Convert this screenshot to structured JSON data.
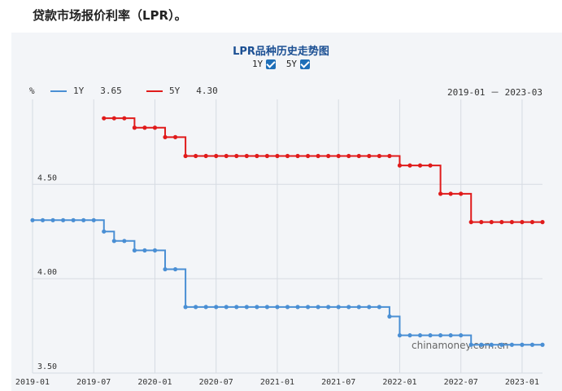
{
  "headline": "贷款市场报价利率（LPR）。",
  "chart_data": {
    "type": "line",
    "title": "LPR品种历史走势图",
    "toggles": [
      {
        "label": "1Y",
        "checked": true
      },
      {
        "label": "5Y",
        "checked": true
      }
    ],
    "unit": "%",
    "range_text": "2019-01 － 2023-03",
    "watermark": "chinamoney.com.cn",
    "x": [
      "2019-01",
      "2019-02",
      "2019-03",
      "2019-04",
      "2019-05",
      "2019-06",
      "2019-07",
      "2019-08",
      "2019-09",
      "2019-10",
      "2019-11",
      "2019-12",
      "2020-01",
      "2020-02",
      "2020-03",
      "2020-04",
      "2020-05",
      "2020-06",
      "2020-07",
      "2020-08",
      "2020-09",
      "2020-10",
      "2020-11",
      "2020-12",
      "2021-01",
      "2021-02",
      "2021-03",
      "2021-04",
      "2021-05",
      "2021-06",
      "2021-07",
      "2021-08",
      "2021-09",
      "2021-10",
      "2021-11",
      "2021-12",
      "2022-01",
      "2022-02",
      "2022-03",
      "2022-04",
      "2022-05",
      "2022-06",
      "2022-07",
      "2022-08",
      "2022-09",
      "2022-10",
      "2022-11",
      "2022-12",
      "2023-01",
      "2023-02",
      "2023-03"
    ],
    "x_ticks": [
      "2019-01",
      "2019-07",
      "2020-01",
      "2020-07",
      "2021-01",
      "2021-07",
      "2022-01",
      "2022-07",
      "2023-01"
    ],
    "y_ticks": [
      "3.50",
      "4.00",
      "4.50"
    ],
    "ylim": [
      3.5,
      4.95
    ],
    "grid": true,
    "series": [
      {
        "name": "1Y",
        "latest": "3.65",
        "color": "#4a8fd4",
        "values": [
          4.31,
          4.31,
          4.31,
          4.31,
          4.31,
          4.31,
          4.31,
          4.25,
          4.2,
          4.2,
          4.15,
          4.15,
          4.15,
          4.05,
          4.05,
          3.85,
          3.85,
          3.85,
          3.85,
          3.85,
          3.85,
          3.85,
          3.85,
          3.85,
          3.85,
          3.85,
          3.85,
          3.85,
          3.85,
          3.85,
          3.85,
          3.85,
          3.85,
          3.85,
          3.85,
          3.8,
          3.7,
          3.7,
          3.7,
          3.7,
          3.7,
          3.7,
          3.7,
          3.65,
          3.65,
          3.65,
          3.65,
          3.65,
          3.65,
          3.65,
          3.65
        ]
      },
      {
        "name": "5Y",
        "latest": "4.30",
        "color": "#e01b1b",
        "values": [
          null,
          null,
          null,
          null,
          null,
          null,
          null,
          4.85,
          4.85,
          4.85,
          4.8,
          4.8,
          4.8,
          4.75,
          4.75,
          4.65,
          4.65,
          4.65,
          4.65,
          4.65,
          4.65,
          4.65,
          4.65,
          4.65,
          4.65,
          4.65,
          4.65,
          4.65,
          4.65,
          4.65,
          4.65,
          4.65,
          4.65,
          4.65,
          4.65,
          4.65,
          4.6,
          4.6,
          4.6,
          4.6,
          4.45,
          4.45,
          4.45,
          4.3,
          4.3,
          4.3,
          4.3,
          4.3,
          4.3,
          4.3,
          4.3
        ]
      }
    ]
  }
}
